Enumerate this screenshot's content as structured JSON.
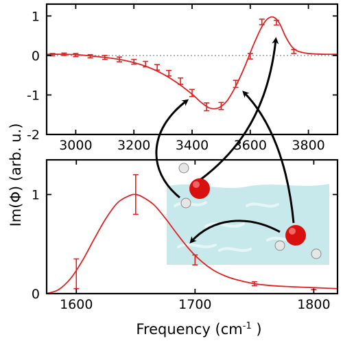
{
  "colors": {
    "curve": "#e02020",
    "zero_line": "#9a9a9a",
    "axes": "#000000",
    "water": "#bfe6ea",
    "oxygen": "#d81010",
    "hydrogen": "#e8e8e8"
  },
  "ylabel": "Im(Φ) (arb. u.)",
  "xlabel_main": "Frequency (cm",
  "xlabel_sup": "-1",
  "xlabel_end": " )",
  "illustration": {
    "molecule_icons": [
      "water-molecule-icon",
      "water-molecule-icon"
    ],
    "surface": "water-surface-illustration"
  },
  "chart_data": [
    {
      "type": "line",
      "panel": "top",
      "xlim": [
        2900,
        3900
      ],
      "ylim": [
        -2,
        1.3
      ],
      "xticks": [
        3000,
        3200,
        3400,
        3600,
        3800
      ],
      "xtick_labels": [
        "3000",
        "3200",
        "3400",
        "3600",
        "3800"
      ],
      "yticks": [
        -2,
        -1,
        0,
        1
      ],
      "ytick_labels": [
        "-2",
        "-1",
        "0",
        "1"
      ],
      "zero_line": true,
      "curve": {
        "x": [
          2900,
          2950,
          3000,
          3050,
          3100,
          3150,
          3200,
          3250,
          3300,
          3350,
          3400,
          3430,
          3460,
          3490,
          3520,
          3550,
          3580,
          3610,
          3640,
          3660,
          3680,
          3700,
          3720,
          3740,
          3760,
          3790,
          3820,
          3860,
          3900
        ],
        "y": [
          0.03,
          0.03,
          0.02,
          -0.01,
          -0.05,
          -0.1,
          -0.18,
          -0.3,
          -0.47,
          -0.7,
          -0.98,
          -1.18,
          -1.33,
          -1.33,
          -1.15,
          -0.78,
          -0.3,
          0.25,
          0.73,
          0.93,
          0.97,
          0.82,
          0.5,
          0.25,
          0.12,
          0.06,
          0.04,
          0.03,
          0.03
        ]
      },
      "points": {
        "x": [
          2920,
          2960,
          3000,
          3050,
          3100,
          3150,
          3200,
          3240,
          3280,
          3320,
          3360,
          3400,
          3450,
          3500,
          3550,
          3600,
          3640,
          3690,
          3750
        ],
        "y": [
          0.02,
          0.03,
          0.01,
          -0.02,
          -0.05,
          -0.1,
          -0.16,
          -0.22,
          -0.3,
          -0.45,
          -0.65,
          -0.95,
          -1.3,
          -1.28,
          -0.72,
          -0.02,
          0.85,
          0.83,
          0.1
        ],
        "err": [
          0.03,
          0.03,
          0.04,
          0.04,
          0.05,
          0.06,
          0.06,
          0.07,
          0.07,
          0.07,
          0.08,
          0.09,
          0.1,
          0.09,
          0.09,
          0.07,
          0.07,
          0.06,
          0.05
        ]
      }
    },
    {
      "type": "line",
      "panel": "bottom",
      "xlim": [
        1575,
        1820
      ],
      "ylim": [
        0,
        1.35
      ],
      "xticks": [
        1600,
        1700,
        1800
      ],
      "xtick_labels": [
        "1600",
        "1700",
        "1800"
      ],
      "yticks": [
        0,
        1
      ],
      "ytick_labels": [
        "0",
        "1"
      ],
      "curve": {
        "x": [
          1575,
          1585,
          1595,
          1605,
          1615,
          1625,
          1635,
          1645,
          1650,
          1655,
          1665,
          1675,
          1685,
          1695,
          1705,
          1715,
          1725,
          1735,
          1750,
          1765,
          1780,
          1800,
          1820
        ],
        "y": [
          0.0,
          0.04,
          0.15,
          0.33,
          0.55,
          0.76,
          0.92,
          0.99,
          1.0,
          0.98,
          0.9,
          0.76,
          0.6,
          0.45,
          0.33,
          0.24,
          0.18,
          0.14,
          0.1,
          0.08,
          0.07,
          0.06,
          0.05
        ]
      },
      "points": {
        "x": [
          1600,
          1650,
          1700,
          1750,
          1800
        ],
        "y": [
          0.2,
          1.0,
          0.34,
          0.1,
          0.05
        ],
        "err": [
          0.15,
          0.2,
          0.05,
          0.02,
          0.01
        ]
      }
    }
  ]
}
